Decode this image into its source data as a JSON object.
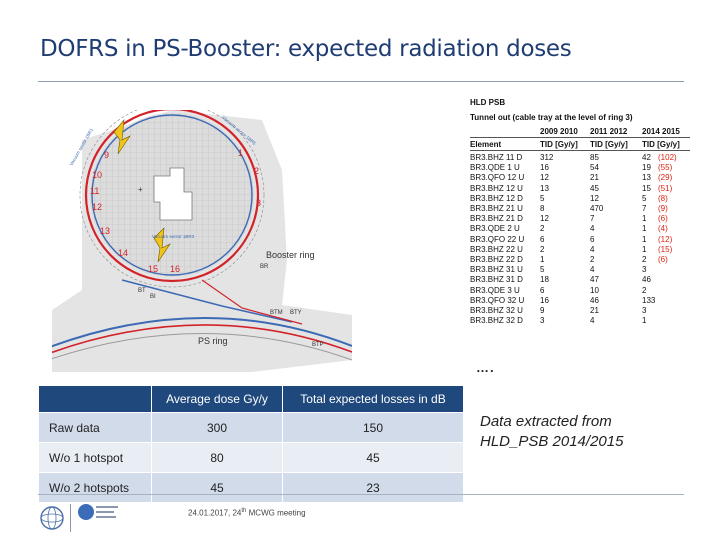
{
  "slide": {
    "title": "DOFRS in PS-Booster: expected radiation doses"
  },
  "figure": {
    "labels": {
      "booster_ring": "Booster ring",
      "ps_ring": "PS ring",
      "br": "BR",
      "btm": "BTM",
      "bty": "BTY",
      "btp": "BTP",
      "bt": "BT",
      "bi": "BI",
      "vacuum_sector_1": "Vacuum sector 1BR1",
      "vacuum_sector_2": "Vacuum sector 1BR3",
      "vacuum_sector_3": "Vacuum sector 1BR5",
      "ring_numbers": [
        "1",
        "2",
        "3",
        "9",
        "10",
        "11",
        "12",
        "13",
        "14",
        "15",
        "16"
      ]
    }
  },
  "hld_table": {
    "header1": "HLD PSB",
    "header2": "Tunnel out (cable tray at the level of ring 3)",
    "years": [
      "2009 2010",
      "2011 2012",
      "2014 2015"
    ],
    "columns": [
      "Element",
      "TID [Gy/y]",
      "TID [Gy/y]",
      "TID [Gy/y]"
    ],
    "rows": [
      {
        "element": "BR3.BHZ 11 D",
        "a": "312",
        "b": "85",
        "c": "42",
        "c_red": "(102)"
      },
      {
        "element": "BR3.QDE 1 U",
        "a": "16",
        "b": "54",
        "c": "19",
        "c_red": "(55)"
      },
      {
        "element": "BR3.QFO 12 U",
        "a": "12",
        "b": "21",
        "c": "13",
        "c_red": "(29)"
      },
      {
        "element": "BR3.BHZ 12 U",
        "a": "13",
        "b": "45",
        "c": "15",
        "c_red": "(51)"
      },
      {
        "element": "BR3.BHZ 12 D",
        "a": "5",
        "b": "12",
        "c": "5",
        "c_red": "(8)"
      },
      {
        "element": "BR3.BHZ 21 U",
        "a": "8",
        "b": "470",
        "c": "7",
        "c_red": "(9)"
      },
      {
        "element": "BR3.BHZ 21 D",
        "a": "12",
        "b": "7",
        "c": "1",
        "c_red": "(6)"
      },
      {
        "element": "BR3.QDE 2 U",
        "a": "2",
        "b": "4",
        "c": "1",
        "c_red": "(4)"
      },
      {
        "element": "BR3.QFO 22 U",
        "a": "6",
        "b": "6",
        "c": "1",
        "c_red": "(12)"
      },
      {
        "element": "BR3.BHZ 22 U",
        "a": "2",
        "b": "4",
        "c": "1",
        "c_red": "(15)"
      },
      {
        "element": "BR3.BHZ 22 D",
        "a": "1",
        "b": "2",
        "c": "2",
        "c_red": "(6)"
      },
      {
        "element": "BR3.BHZ 31 U",
        "a": "5",
        "b": "4",
        "c": "3",
        "c_red": ""
      },
      {
        "element": "BR3.BHZ 31 D",
        "a": "18",
        "b": "47",
        "c": "46",
        "c_red": ""
      },
      {
        "element": "BR3.QDE 3 U",
        "a": "6",
        "b": "10",
        "c": "2",
        "c_red": ""
      },
      {
        "element": "BR3.QFO 32 U",
        "a": "16",
        "b": "46",
        "c": "133",
        "c_red": ""
      },
      {
        "element": "BR3.BHZ 32 U",
        "a": "9",
        "b": "21",
        "c": "3",
        "c_red": ""
      },
      {
        "element": "BR3.BHZ 32 D",
        "a": "3",
        "b": "4",
        "c": "1",
        "c_red": ""
      }
    ],
    "ellipsis": "…."
  },
  "dose_table": {
    "headers": [
      "",
      "Average dose Gy/y",
      "Total expected losses in dB"
    ],
    "rows": [
      {
        "label": "Raw data",
        "dose": "300",
        "losses": "150"
      },
      {
        "label": "W/o 1 hotspot",
        "dose": "80",
        "losses": "45"
      },
      {
        "label": "W/o 2 hotspots",
        "dose": "45",
        "losses": "23"
      }
    ]
  },
  "note": {
    "line1": "Data extracted from",
    "line2": "HLD_PSB 2014/2015"
  },
  "footer": {
    "date_prefix": "24.01.2017, 24",
    "superscript": "th",
    "meeting": " MCWG meeting"
  },
  "colors": {
    "title": "#1f3c73",
    "table_header": "#1f497d",
    "row_odd": "#d1dbe9",
    "row_even": "#e9eef5",
    "ring_red": "#d2232a",
    "ring_blue": "#3d6ab4",
    "highlight_red": "#dd2211"
  }
}
